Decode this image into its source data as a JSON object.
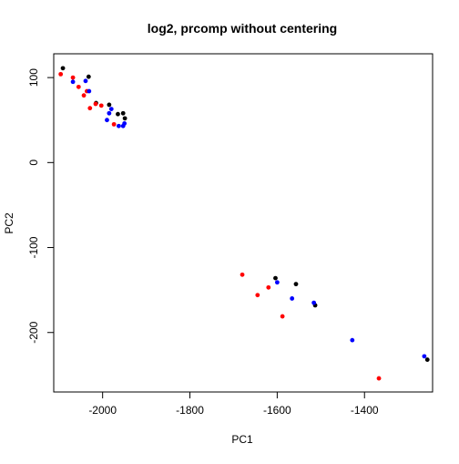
{
  "chart_data": {
    "type": "scatter",
    "title": "log2, prcomp without centering",
    "xlabel": "PC1",
    "ylabel": "PC2",
    "xlim": [
      -2112,
      -1244
    ],
    "ylim": [
      -270,
      128
    ],
    "x_ticks": [
      -2000,
      -1800,
      -1600,
      -1400
    ],
    "y_ticks": [
      -200,
      -100,
      0,
      100
    ],
    "grid": false,
    "legend": "none",
    "colors": {
      "black": "#000000",
      "red": "#ff0000",
      "blue": "#0000ff"
    },
    "series": [
      {
        "color": "black",
        "points": [
          {
            "x": -2091,
            "y": 111
          },
          {
            "x": -2032,
            "y": 101
          },
          {
            "x": -2015,
            "y": 70
          },
          {
            "x": -1985,
            "y": 68
          },
          {
            "x": -1965,
            "y": 57
          },
          {
            "x": -1953,
            "y": 58
          },
          {
            "x": -1949,
            "y": 52
          },
          {
            "x": -1604,
            "y": -136
          },
          {
            "x": -1557,
            "y": -143
          },
          {
            "x": -1513,
            "y": -168
          },
          {
            "x": -1256,
            "y": -232
          }
        ]
      },
      {
        "color": "red",
        "points": [
          {
            "x": -2096,
            "y": 104
          },
          {
            "x": -2068,
            "y": 100
          },
          {
            "x": -2055,
            "y": 89
          },
          {
            "x": -2043,
            "y": 79
          },
          {
            "x": -2036,
            "y": 84
          },
          {
            "x": -2029,
            "y": 64
          },
          {
            "x": -2016,
            "y": 69
          },
          {
            "x": -2003,
            "y": 67
          },
          {
            "x": -1974,
            "y": 45
          },
          {
            "x": -1680,
            "y": -132
          },
          {
            "x": -1645,
            "y": -156
          },
          {
            "x": -1620,
            "y": -147
          },
          {
            "x": -1588,
            "y": -181
          },
          {
            "x": -1367,
            "y": -254
          }
        ]
      },
      {
        "color": "blue",
        "points": [
          {
            "x": -2068,
            "y": 95
          },
          {
            "x": -2039,
            "y": 96
          },
          {
            "x": -2031,
            "y": 84
          },
          {
            "x": -1990,
            "y": 50
          },
          {
            "x": -1985,
            "y": 58
          },
          {
            "x": -1980,
            "y": 63
          },
          {
            "x": -1963,
            "y": 43
          },
          {
            "x": -1953,
            "y": 43
          },
          {
            "x": -1950,
            "y": 46
          },
          {
            "x": -1600,
            "y": -141
          },
          {
            "x": -1566,
            "y": -160
          },
          {
            "x": -1516,
            "y": -165
          },
          {
            "x": -1428,
            "y": -209
          },
          {
            "x": -1263,
            "y": -228
          }
        ]
      }
    ]
  }
}
